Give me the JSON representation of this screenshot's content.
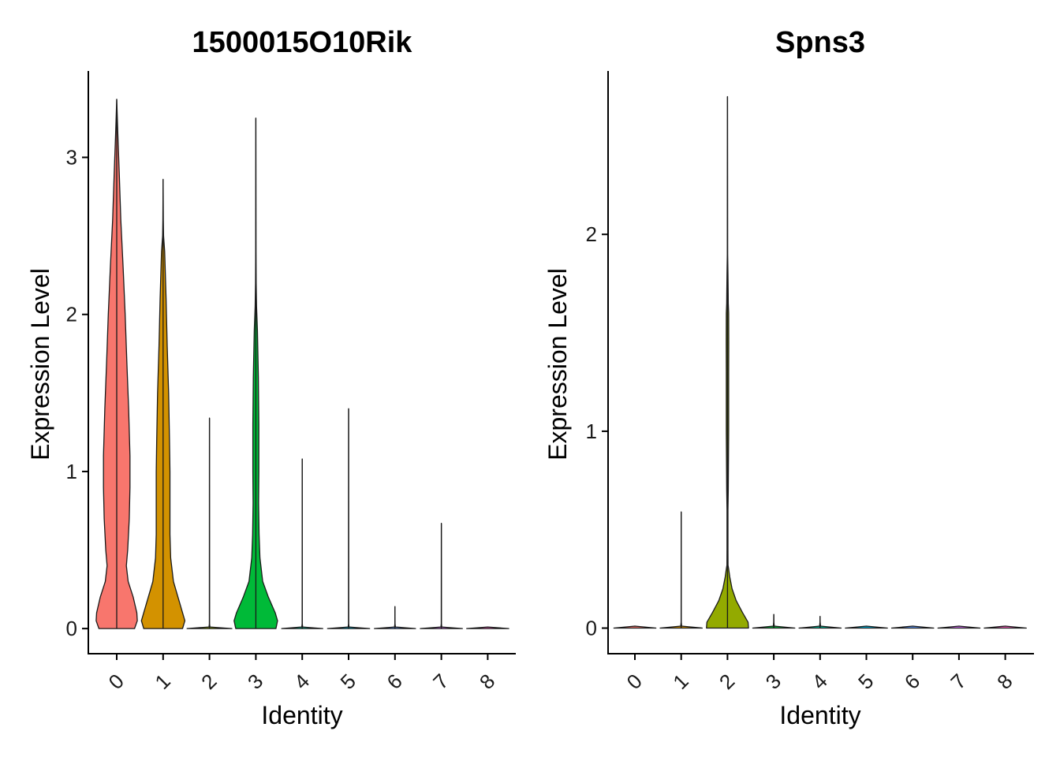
{
  "chart_data": [
    {
      "type": "violin",
      "title": "1500015O10Rik",
      "xlabel": "Identity",
      "ylabel": "Expression Level",
      "categories": [
        "0",
        "1",
        "2",
        "3",
        "4",
        "5",
        "6",
        "7",
        "8"
      ],
      "yticks": [
        0,
        1,
        2,
        3
      ],
      "ylim": [
        -0.16,
        3.55
      ],
      "violins": [
        {
          "category": "0",
          "color": "#F8766D",
          "max": 3.37,
          "profile": [
            [
              0,
              0.78
            ],
            [
              0.05,
              0.9
            ],
            [
              0.1,
              0.88
            ],
            [
              0.2,
              0.72
            ],
            [
              0.3,
              0.5
            ],
            [
              0.4,
              0.42
            ],
            [
              0.5,
              0.48
            ],
            [
              0.7,
              0.55
            ],
            [
              0.9,
              0.58
            ],
            [
              1.1,
              0.58
            ],
            [
              1.4,
              0.52
            ],
            [
              1.7,
              0.44
            ],
            [
              2.0,
              0.37
            ],
            [
              2.3,
              0.28
            ],
            [
              2.6,
              0.18
            ],
            [
              2.9,
              0.11
            ],
            [
              3.15,
              0.05
            ],
            [
              3.37,
              0.0
            ]
          ]
        },
        {
          "category": "1",
          "color": "#D39200",
          "max": 2.86,
          "profile": [
            [
              0,
              0.85
            ],
            [
              0.05,
              0.95
            ],
            [
              0.1,
              0.85
            ],
            [
              0.2,
              0.65
            ],
            [
              0.3,
              0.45
            ],
            [
              0.45,
              0.33
            ],
            [
              0.6,
              0.3
            ],
            [
              0.8,
              0.3
            ],
            [
              1.0,
              0.3
            ],
            [
              1.2,
              0.28
            ],
            [
              1.5,
              0.24
            ],
            [
              1.8,
              0.18
            ],
            [
              2.1,
              0.13
            ],
            [
              2.4,
              0.07
            ],
            [
              2.5,
              0.02
            ],
            [
              2.6,
              0.01
            ],
            [
              2.86,
              0.0
            ]
          ]
        },
        {
          "category": "2",
          "color": "#93AA00",
          "max": 1.34,
          "profile": [
            [
              0,
              0.98
            ],
            [
              0.01,
              0.02
            ],
            [
              0.03,
              0.004
            ],
            [
              1.34,
              0.0
            ]
          ]
        },
        {
          "category": "3",
          "color": "#00BA38",
          "max": 3.25,
          "profile": [
            [
              0,
              0.88
            ],
            [
              0.05,
              0.95
            ],
            [
              0.1,
              0.85
            ],
            [
              0.2,
              0.55
            ],
            [
              0.3,
              0.3
            ],
            [
              0.45,
              0.18
            ],
            [
              0.6,
              0.14
            ],
            [
              0.8,
              0.12
            ],
            [
              1.0,
              0.13
            ],
            [
              1.3,
              0.13
            ],
            [
              1.6,
              0.11
            ],
            [
              1.9,
              0.07
            ],
            [
              2.05,
              0.03
            ],
            [
              2.2,
              0.015
            ],
            [
              2.4,
              0.008
            ],
            [
              3.25,
              0.0
            ]
          ]
        },
        {
          "category": "4",
          "color": "#00C19F",
          "max": 1.08,
          "profile": [
            [
              0,
              0.9
            ],
            [
              0.01,
              0.02
            ],
            [
              0.03,
              0.004
            ],
            [
              1.08,
              0.0
            ]
          ]
        },
        {
          "category": "5",
          "color": "#00B9E3",
          "max": 1.4,
          "profile": [
            [
              0,
              0.92
            ],
            [
              0.01,
              0.02
            ],
            [
              0.03,
              0.004
            ],
            [
              1.4,
              0.0
            ]
          ]
        },
        {
          "category": "6",
          "color": "#619CFF",
          "max": 0.14,
          "profile": [
            [
              0,
              0.9
            ],
            [
              0.01,
              0.02
            ],
            [
              0.03,
              0.004
            ],
            [
              0.14,
              0.0
            ]
          ]
        },
        {
          "category": "7",
          "color": "#DB72FB",
          "max": 0.67,
          "profile": [
            [
              0,
              0.92
            ],
            [
              0.01,
              0.02
            ],
            [
              0.03,
              0.004
            ],
            [
              0.67,
              0.0
            ]
          ]
        },
        {
          "category": "8",
          "color": "#FF61C3",
          "max": 0.0,
          "profile": [
            [
              0,
              0.92
            ],
            [
              0.01,
              0.0
            ]
          ]
        }
      ]
    },
    {
      "type": "violin",
      "title": "Spns3",
      "xlabel": "Identity",
      "ylabel": "Expression Level",
      "categories": [
        "0",
        "1",
        "2",
        "3",
        "4",
        "5",
        "6",
        "7",
        "8"
      ],
      "yticks": [
        0,
        1,
        2
      ],
      "ylim": [
        -0.13,
        2.83
      ],
      "violins": [
        {
          "category": "0",
          "color": "#F8766D",
          "max": 0.02,
          "profile": [
            [
              0,
              0.92
            ],
            [
              0.01,
              0.0
            ]
          ]
        },
        {
          "category": "1",
          "color": "#D39200",
          "max": 0.59,
          "profile": [
            [
              0,
              0.92
            ],
            [
              0.01,
              0.02
            ],
            [
              0.03,
              0.004
            ],
            [
              0.59,
              0.0
            ]
          ]
        },
        {
          "category": "2",
          "color": "#93AA00",
          "max": 2.7,
          "profile": [
            [
              0,
              0.92
            ],
            [
              0.03,
              0.9
            ],
            [
              0.08,
              0.65
            ],
            [
              0.14,
              0.38
            ],
            [
              0.2,
              0.2
            ],
            [
              0.26,
              0.1
            ],
            [
              0.3,
              0.05
            ],
            [
              0.32,
              0.025
            ],
            [
              0.4,
              0.02
            ],
            [
              0.6,
              0.02
            ],
            [
              0.7,
              0.035
            ],
            [
              1.0,
              0.05
            ],
            [
              1.3,
              0.05
            ],
            [
              1.45,
              0.055
            ],
            [
              1.6,
              0.05
            ],
            [
              1.65,
              0.035
            ],
            [
              1.7,
              0.03
            ],
            [
              1.8,
              0.02
            ],
            [
              1.9,
              0.008
            ],
            [
              2.7,
              0.0
            ]
          ]
        },
        {
          "category": "3",
          "color": "#00BA38",
          "max": 0.07,
          "profile": [
            [
              0,
              0.92
            ],
            [
              0.01,
              0.02
            ],
            [
              0.03,
              0.004
            ],
            [
              0.07,
              0.0
            ]
          ]
        },
        {
          "category": "4",
          "color": "#00C19F",
          "max": 0.06,
          "profile": [
            [
              0,
              0.92
            ],
            [
              0.01,
              0.02
            ],
            [
              0.03,
              0.004
            ],
            [
              0.06,
              0.0
            ]
          ]
        },
        {
          "category": "5",
          "color": "#00B9E3",
          "max": 0.0,
          "profile": [
            [
              0,
              0.92
            ],
            [
              0.01,
              0.0
            ]
          ]
        },
        {
          "category": "6",
          "color": "#619CFF",
          "max": 0.01,
          "profile": [
            [
              0,
              0.92
            ],
            [
              0.01,
              0.0
            ]
          ]
        },
        {
          "category": "7",
          "color": "#DB72FB",
          "max": 0.0,
          "profile": [
            [
              0,
              0.92
            ],
            [
              0.01,
              0.0
            ]
          ]
        },
        {
          "category": "8",
          "color": "#FF61C3",
          "max": 0.0,
          "profile": [
            [
              0,
              0.92
            ],
            [
              0.01,
              0.0
            ]
          ]
        }
      ]
    }
  ]
}
